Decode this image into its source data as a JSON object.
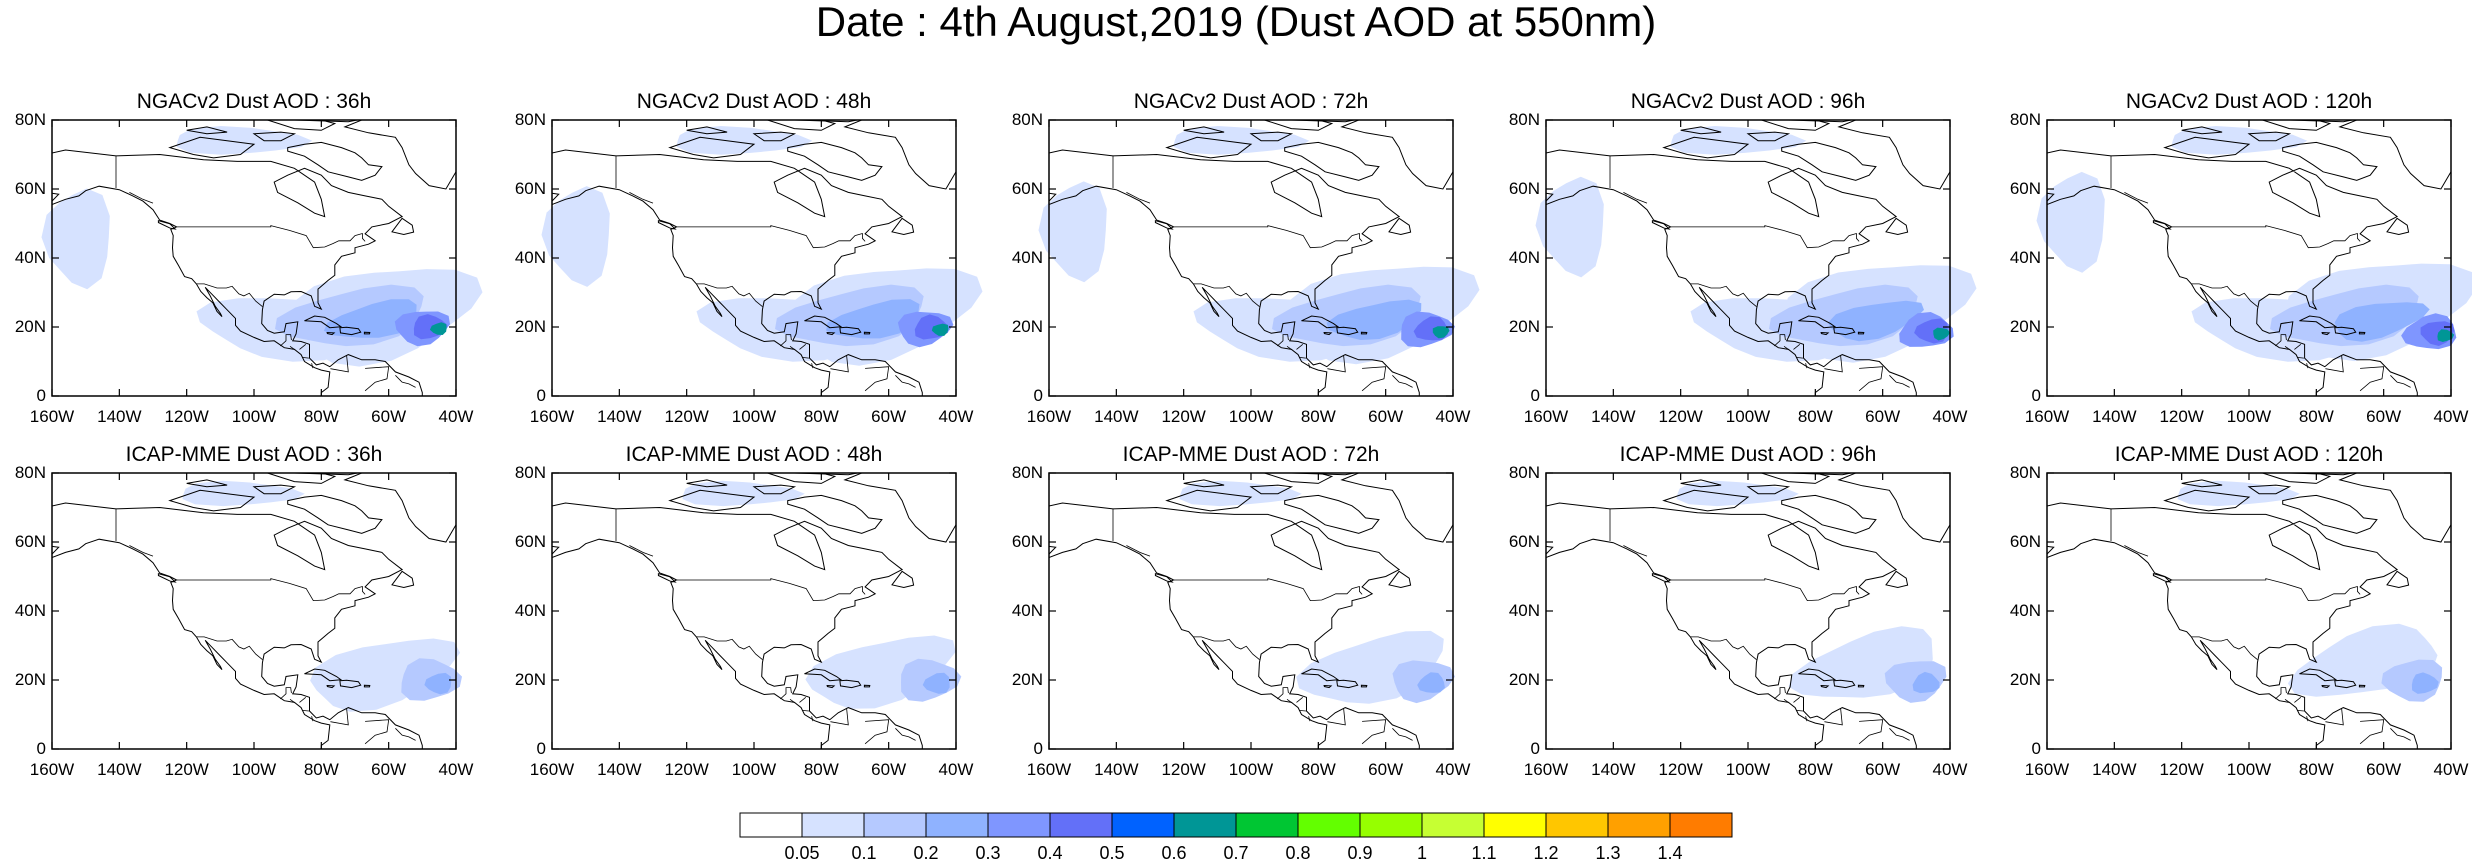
{
  "title": "Date : 4th August,2019 (Dust AOD at 550nm)",
  "lat_ticks": [
    "80N",
    "60N",
    "40N",
    "20N",
    "0"
  ],
  "lon_ticks": [
    "160W",
    "140W",
    "120W",
    "100W",
    "80W",
    "60W",
    "40W"
  ],
  "lat_values": [
    80,
    60,
    40,
    20,
    0
  ],
  "lon_values": [
    -160,
    -140,
    -120,
    -100,
    -80,
    -60,
    -40
  ],
  "panels": [
    {
      "title": "NGACv2 Dust AOD : 36h",
      "model": "NGAC",
      "lead": 36
    },
    {
      "title": "NGACv2 Dust AOD : 48h",
      "model": "NGAC",
      "lead": 48
    },
    {
      "title": "NGACv2 Dust AOD : 72h",
      "model": "NGAC",
      "lead": 72
    },
    {
      "title": "NGACv2 Dust AOD : 96h",
      "model": "NGAC",
      "lead": 96
    },
    {
      "title": "NGACv2 Dust AOD : 120h",
      "model": "NGAC",
      "lead": 120
    },
    {
      "title": "ICAP-MME Dust AOD : 36h",
      "model": "ICAP",
      "lead": 36
    },
    {
      "title": "ICAP-MME Dust AOD : 48h",
      "model": "ICAP",
      "lead": 48
    },
    {
      "title": "ICAP-MME Dust AOD : 72h",
      "model": "ICAP",
      "lead": 72
    },
    {
      "title": "ICAP-MME Dust AOD : 96h",
      "model": "ICAP",
      "lead": 96
    },
    {
      "title": "ICAP-MME Dust AOD : 120h",
      "model": "ICAP",
      "lead": 120
    }
  ],
  "colorbar": {
    "labels": [
      "0.05",
      "0.1",
      "0.2",
      "0.3",
      "0.4",
      "0.5",
      "0.6",
      "0.7",
      "0.8",
      "0.9",
      "1",
      "1.1",
      "1.2",
      "1.3",
      "1.4"
    ],
    "colors": [
      "#ffffff",
      "#d6e2ff",
      "#b5c9ff",
      "#8fb2ff",
      "#7f96ff",
      "#6370f8",
      "#0062ff",
      "#009696",
      "#00c633",
      "#63ff00",
      "#96ff00",
      "#c6ff33",
      "#ffff00",
      "#ffc600",
      "#ffa000",
      "#ff7c00",
      "#ff1900"
    ]
  }
}
